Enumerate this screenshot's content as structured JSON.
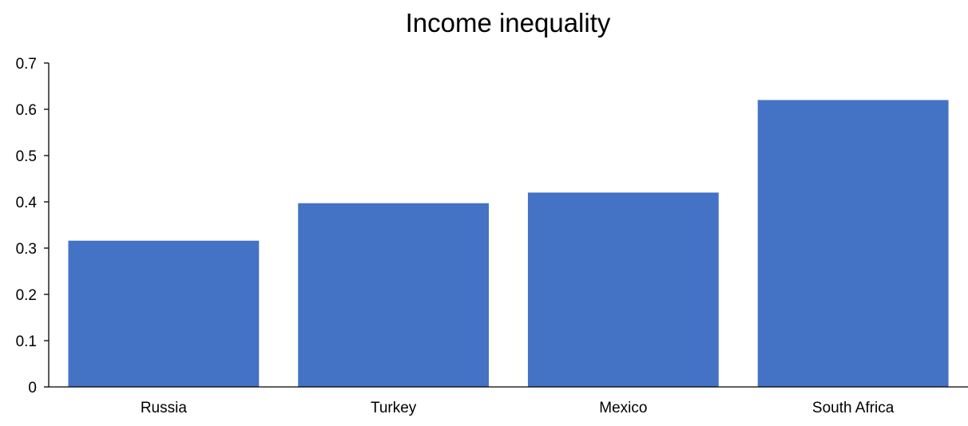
{
  "chart_data": {
    "type": "bar",
    "title": "Income inequality",
    "xlabel": "",
    "ylabel": "",
    "categories": [
      "Russia",
      "Turkey",
      "Mexico",
      "South Africa"
    ],
    "values": [
      0.316,
      0.397,
      0.42,
      0.62
    ],
    "ylim": [
      0,
      0.7
    ],
    "yticks": [
      "0",
      "0.1",
      "0.2",
      "0.3",
      "0.4",
      "0.5",
      "0.6",
      "0.7"
    ],
    "grid": false,
    "legend": "none",
    "bar_color": "#4472C4",
    "axis_color": "#000000"
  }
}
